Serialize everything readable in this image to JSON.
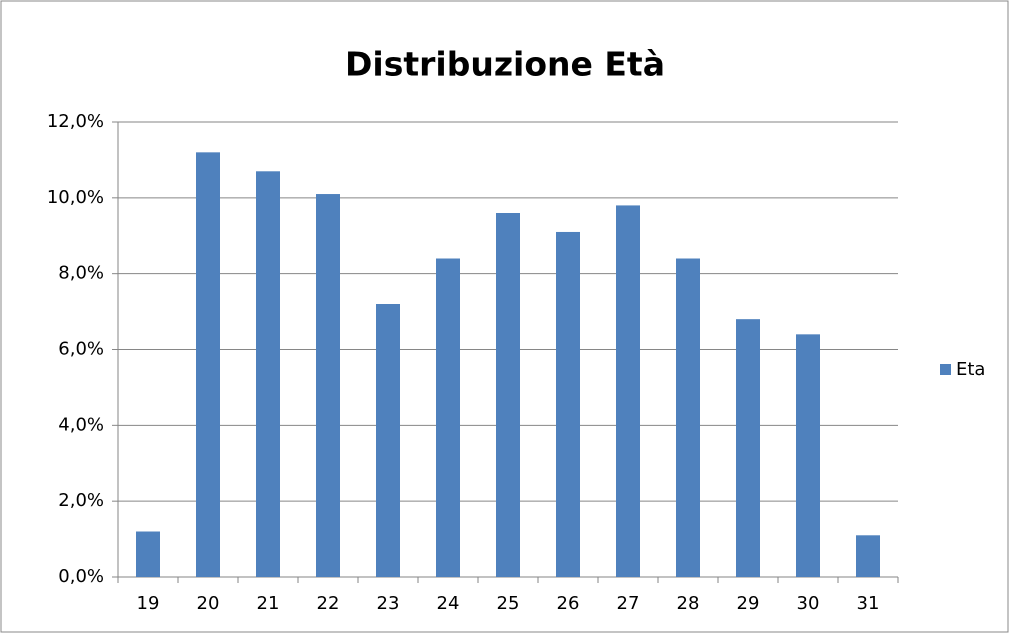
{
  "chart_data": {
    "type": "bar",
    "title": "Distribuzione Età",
    "categories": [
      "19",
      "20",
      "21",
      "22",
      "23",
      "24",
      "25",
      "26",
      "27",
      "28",
      "29",
      "30",
      "31"
    ],
    "series": [
      {
        "name": "Eta",
        "color": "#4f81bd",
        "values": [
          1.2,
          11.2,
          10.7,
          10.1,
          7.2,
          8.4,
          9.6,
          9.1,
          9.8,
          8.4,
          6.8,
          6.4,
          1.1
        ]
      }
    ],
    "ylim": [
      0,
      12
    ],
    "yticks": [
      {
        "value": 0,
        "label": "0,0%"
      },
      {
        "value": 2,
        "label": "2,0%"
      },
      {
        "value": 4,
        "label": "4,0%"
      },
      {
        "value": 6,
        "label": "6,0%"
      },
      {
        "value": 8,
        "label": "8,0%"
      },
      {
        "value": 10,
        "label": "10,0%"
      },
      {
        "value": 12,
        "label": "12,0%"
      }
    ],
    "grid": true,
    "legend": "right"
  }
}
